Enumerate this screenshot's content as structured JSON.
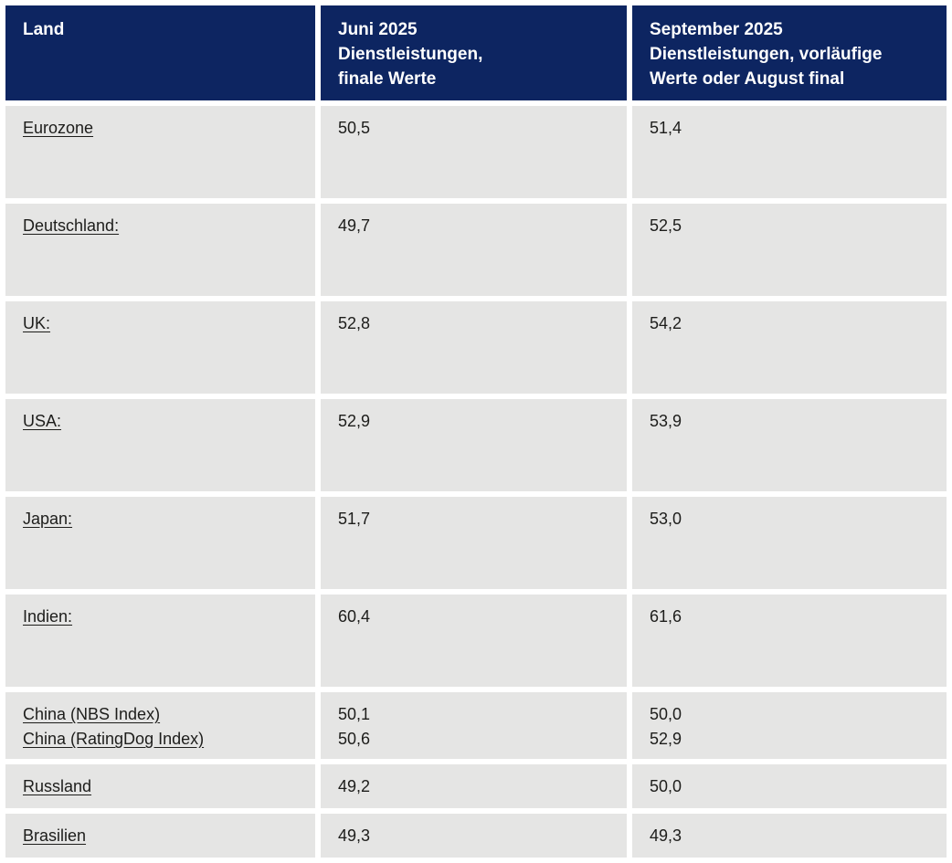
{
  "colors": {
    "header_bg": "#0d2561",
    "row_bg": "#e5e5e4",
    "header_text": "#ffffff",
    "body_text": "#1d1d1b"
  },
  "table": {
    "columns": [
      {
        "label": "Land"
      },
      {
        "label": "Juni 2025\nDienstleistungen,\nfinale Werte"
      },
      {
        "label": "September 2025\nDienstleistungen, vorläufige\nWerte oder August final"
      }
    ],
    "rows": [
      {
        "land": [
          "Eurozone"
        ],
        "juni": [
          "50,5"
        ],
        "september": [
          "51,4"
        ]
      },
      {
        "land": [
          "Deutschland:"
        ],
        "juni": [
          "49,7"
        ],
        "september": [
          "52,5"
        ]
      },
      {
        "land": [
          "UK:"
        ],
        "juni": [
          "52,8"
        ],
        "september": [
          "54,2"
        ]
      },
      {
        "land": [
          "USA:"
        ],
        "juni": [
          "52,9"
        ],
        "september": [
          "53,9"
        ]
      },
      {
        "land": [
          "Japan:"
        ],
        "juni": [
          "51,7"
        ],
        "september": [
          "53,0"
        ]
      },
      {
        "land": [
          "Indien:"
        ],
        "juni": [
          "60,4"
        ],
        "september": [
          "61,6"
        ]
      },
      {
        "land": [
          "China (NBS Index)",
          "China (RatingDog Index)"
        ],
        "juni": [
          "50,1",
          "50,6"
        ],
        "september": [
          "50,0",
          "52,9"
        ]
      },
      {
        "land": [
          "Russland"
        ],
        "juni": [
          "49,2"
        ],
        "september": [
          "50,0"
        ]
      },
      {
        "land": [
          "Brasilien"
        ],
        "juni": [
          "49,3"
        ],
        "september": [
          "49,3"
        ]
      }
    ]
  },
  "chart_data": {
    "type": "table",
    "title": "Dienstleistungs-PMI nach Land",
    "columns": [
      "Land",
      "Juni 2025 Dienstleistungen, finale Werte",
      "September 2025 Dienstleistungen, vorläufige Werte oder August final"
    ],
    "rows": [
      [
        "Eurozone",
        50.5,
        51.4
      ],
      [
        "Deutschland",
        49.7,
        52.5
      ],
      [
        "UK",
        52.8,
        54.2
      ],
      [
        "USA",
        52.9,
        53.9
      ],
      [
        "Japan",
        51.7,
        53.0
      ],
      [
        "Indien",
        60.4,
        61.6
      ],
      [
        "China (NBS Index)",
        50.1,
        50.0
      ],
      [
        "China (RatingDog Index)",
        50.6,
        52.9
      ],
      [
        "Russland",
        49.2,
        50.0
      ],
      [
        "Brasilien",
        49.3,
        49.3
      ]
    ]
  }
}
